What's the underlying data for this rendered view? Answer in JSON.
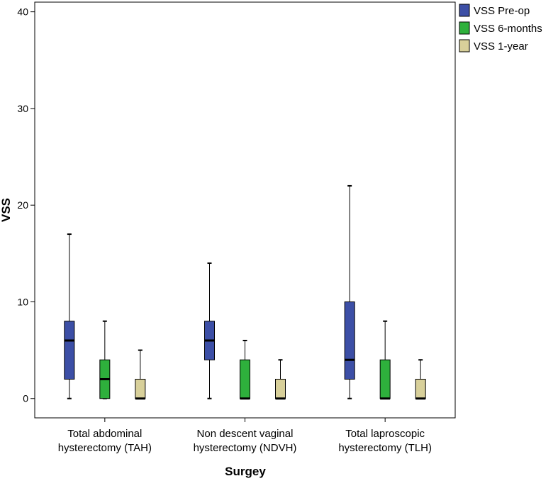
{
  "chart_data": {
    "type": "box",
    "xlabel": "Surgey",
    "ylabel": "VSS",
    "ylim": [
      -2,
      41
    ],
    "yticks": [
      0,
      10,
      20,
      30,
      40
    ],
    "grid": false,
    "legend_position": "top-right",
    "categories": [
      [
        "Total abdominal",
        "hysterectomy (TAH)"
      ],
      [
        "Non descent vaginal",
        "hysterectomy (NDVH)"
      ],
      [
        "Total laproscopic",
        "hysterectomy (TLH)"
      ]
    ],
    "series": [
      {
        "name": "VSS Pre-op",
        "color": "#3c4fa6",
        "boxes": [
          {
            "min": 0,
            "q1": 2,
            "median": 6,
            "q3": 8,
            "max": 17
          },
          {
            "min": 0,
            "q1": 4,
            "median": 6,
            "q3": 8,
            "max": 14
          },
          {
            "min": 0,
            "q1": 2,
            "median": 4,
            "q3": 10,
            "max": 22
          }
        ]
      },
      {
        "name": "VSS 6-months",
        "color": "#2eb03c",
        "boxes": [
          {
            "min": 0,
            "q1": 0,
            "median": 2,
            "q3": 4,
            "max": 8
          },
          {
            "min": 0,
            "q1": 0,
            "median": 0,
            "q3": 4,
            "max": 6
          },
          {
            "min": 0,
            "q1": 0,
            "median": 0,
            "q3": 4,
            "max": 8
          }
        ]
      },
      {
        "name": "VSS 1-year",
        "color": "#d8d09a",
        "boxes": [
          {
            "min": 0,
            "q1": 0,
            "median": 0,
            "q3": 2,
            "max": 5
          },
          {
            "min": 0,
            "q1": 0,
            "median": 0,
            "q3": 2,
            "max": 4
          },
          {
            "min": 0,
            "q1": 0,
            "median": 0,
            "q3": 2,
            "max": 4
          }
        ]
      }
    ]
  }
}
